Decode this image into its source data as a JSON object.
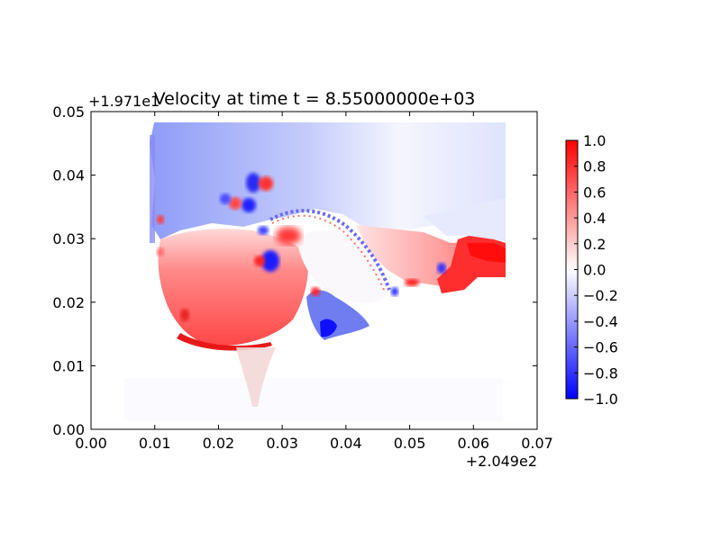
{
  "chart_data": {
    "type": "heatmap",
    "title": "Velocity at time t = 8.55000000e+03",
    "xlabel": "",
    "ylabel": "",
    "x_offset_label": "+2.049e2",
    "y_offset_label": "+1.971e1",
    "xlim": [
      0.0,
      0.07
    ],
    "ylim": [
      0.0,
      0.05
    ],
    "x_ticks": [
      "0.00",
      "0.01",
      "0.02",
      "0.03",
      "0.04",
      "0.05",
      "0.06",
      "0.07"
    ],
    "y_ticks": [
      "0.00",
      "0.01",
      "0.02",
      "0.03",
      "0.04",
      "0.05"
    ],
    "colorbar": {
      "range": [
        -1.0,
        1.0
      ],
      "colormap": "bwr",
      "ticks": [
        "−1.0",
        "−0.8",
        "−0.6",
        "−0.4",
        "−0.2",
        "0.0",
        "0.2",
        "0.4",
        "0.6",
        "0.8",
        "1.0"
      ]
    },
    "regions": [
      {
        "region": "upper",
        "x": [
          0.01,
          0.065
        ],
        "y": [
          0.03,
          0.048
        ],
        "value": -0.3
      },
      {
        "region": "lower-left",
        "x": [
          0.01,
          0.037
        ],
        "y": [
          0.013,
          0.031
        ],
        "value": 0.5
      },
      {
        "region": "right",
        "x": [
          0.04,
          0.065
        ],
        "y": [
          0.022,
          0.03
        ],
        "value": 0.4
      },
      {
        "region": "far-right",
        "x": [
          0.058,
          0.065
        ],
        "y": [
          0.024,
          0.029
        ],
        "value": 1.0
      },
      {
        "region": "blue-pocket",
        "x": [
          0.034,
          0.047
        ],
        "y": [
          0.015,
          0.022
        ],
        "value": -0.6
      }
    ],
    "colors": {
      "negative": "#0000ff",
      "zero": "#ffffff",
      "positive": "#ff0000"
    }
  }
}
